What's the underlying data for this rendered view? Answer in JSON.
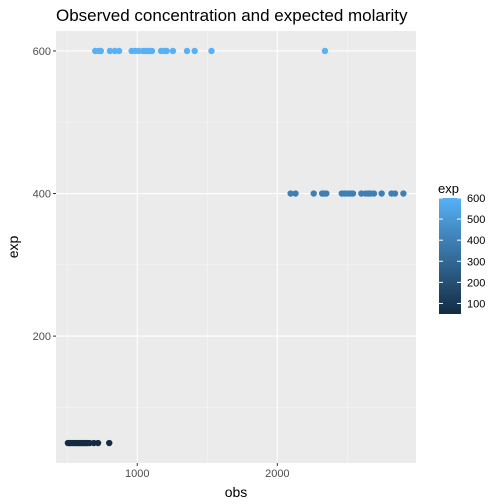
{
  "chart_data": {
    "type": "scatter",
    "title": "Observed concentration and expected molarity",
    "xlabel": "obs",
    "ylabel": "exp",
    "xlim": [
      420,
      2990
    ],
    "ylim": [
      22,
      628
    ],
    "xticks": [
      1000,
      2000
    ],
    "xtick_labels": [
      "1000",
      "2000"
    ],
    "xminor": [
      500,
      1500,
      2500
    ],
    "yticks": [
      200,
      400,
      600
    ],
    "ytick_labels": [
      "200",
      "400",
      "600"
    ],
    "yminor": [
      100,
      300,
      500
    ],
    "grid": true,
    "legend": {
      "title": "exp",
      "position": "right",
      "type": "colorbar",
      "range": [
        50,
        600
      ],
      "breaks": [
        100,
        200,
        300,
        400,
        500,
        600
      ],
      "break_labels": [
        "100",
        "200",
        "300",
        "400",
        "500",
        "600"
      ],
      "low_color": "#132B43",
      "high_color": "#56B1F7"
    },
    "points": [
      {
        "x": 505,
        "y": 50
      },
      {
        "x": 515,
        "y": 50
      },
      {
        "x": 525,
        "y": 50
      },
      {
        "x": 540,
        "y": 50
      },
      {
        "x": 555,
        "y": 50
      },
      {
        "x": 565,
        "y": 50
      },
      {
        "x": 575,
        "y": 50
      },
      {
        "x": 585,
        "y": 50
      },
      {
        "x": 595,
        "y": 50
      },
      {
        "x": 605,
        "y": 50
      },
      {
        "x": 615,
        "y": 50
      },
      {
        "x": 625,
        "y": 50
      },
      {
        "x": 635,
        "y": 50
      },
      {
        "x": 645,
        "y": 50
      },
      {
        "x": 660,
        "y": 50
      },
      {
        "x": 690,
        "y": 50
      },
      {
        "x": 720,
        "y": 50
      },
      {
        "x": 800,
        "y": 50
      },
      {
        "x": 700,
        "y": 600
      },
      {
        "x": 725,
        "y": 600
      },
      {
        "x": 740,
        "y": 600
      },
      {
        "x": 805,
        "y": 600
      },
      {
        "x": 840,
        "y": 600
      },
      {
        "x": 870,
        "y": 600
      },
      {
        "x": 960,
        "y": 600
      },
      {
        "x": 985,
        "y": 600
      },
      {
        "x": 1010,
        "y": 600
      },
      {
        "x": 1040,
        "y": 600
      },
      {
        "x": 1055,
        "y": 600
      },
      {
        "x": 1075,
        "y": 600
      },
      {
        "x": 1090,
        "y": 600
      },
      {
        "x": 1105,
        "y": 600
      },
      {
        "x": 1170,
        "y": 600
      },
      {
        "x": 1195,
        "y": 600
      },
      {
        "x": 1210,
        "y": 600
      },
      {
        "x": 1255,
        "y": 600
      },
      {
        "x": 1355,
        "y": 600
      },
      {
        "x": 1410,
        "y": 600
      },
      {
        "x": 1530,
        "y": 600
      },
      {
        "x": 2340,
        "y": 600
      },
      {
        "x": 2095,
        "y": 400
      },
      {
        "x": 2130,
        "y": 400
      },
      {
        "x": 2260,
        "y": 400
      },
      {
        "x": 2320,
        "y": 400
      },
      {
        "x": 2335,
        "y": 400
      },
      {
        "x": 2350,
        "y": 400
      },
      {
        "x": 2460,
        "y": 400
      },
      {
        "x": 2480,
        "y": 400
      },
      {
        "x": 2500,
        "y": 400
      },
      {
        "x": 2520,
        "y": 400
      },
      {
        "x": 2540,
        "y": 400
      },
      {
        "x": 2600,
        "y": 400
      },
      {
        "x": 2630,
        "y": 400
      },
      {
        "x": 2650,
        "y": 400
      },
      {
        "x": 2665,
        "y": 400
      },
      {
        "x": 2690,
        "y": 400
      },
      {
        "x": 2745,
        "y": 400
      },
      {
        "x": 2815,
        "y": 400
      },
      {
        "x": 2840,
        "y": 400
      },
      {
        "x": 2900,
        "y": 400
      }
    ]
  }
}
